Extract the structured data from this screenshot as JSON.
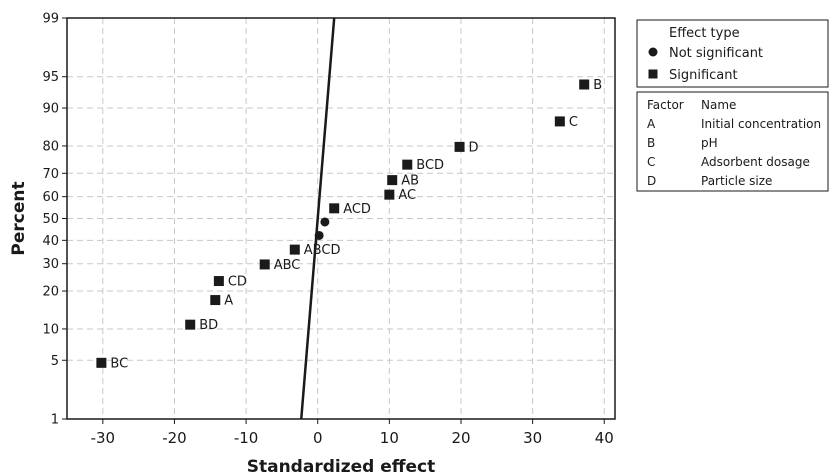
{
  "chart_data": {
    "type": "scatter",
    "chart_kind": "normal probability plot",
    "xlabel": "Standardized effect",
    "ylabel": "Percent",
    "xlim": [
      -35,
      41.5
    ],
    "xticks": [
      -30,
      -20,
      -10,
      0,
      10,
      20,
      30,
      40
    ],
    "yticks": [
      1,
      5,
      10,
      20,
      30,
      40,
      50,
      60,
      70,
      80,
      90,
      95,
      99
    ],
    "y_scale": "normal probability",
    "grid": true,
    "reference_line": {
      "x": [
        -2.3,
        2.3
      ],
      "y": [
        1,
        99
      ]
    },
    "points": [
      {
        "label": "BC",
        "x": -30.2,
        "y": 4.7,
        "type": "Significant"
      },
      {
        "label": "BD",
        "x": -17.8,
        "y": 10.9,
        "type": "Significant"
      },
      {
        "label": "A",
        "x": -14.3,
        "y": 17.2,
        "type": "Significant"
      },
      {
        "label": "CD",
        "x": -13.8,
        "y": 23.4,
        "type": "Significant"
      },
      {
        "label": "ABC",
        "x": -7.4,
        "y": 29.7,
        "type": "Significant"
      },
      {
        "label": "ABCD",
        "x": -3.2,
        "y": 35.9,
        "type": "Significant"
      },
      {
        "label": "",
        "x": 0.2,
        "y": 42.2,
        "type": "Not significant"
      },
      {
        "label": "",
        "x": 1.0,
        "y": 48.4,
        "type": "Not significant"
      },
      {
        "label": "ACD",
        "x": 2.3,
        "y": 54.7,
        "type": "Significant"
      },
      {
        "label": "AC",
        "x": 10.0,
        "y": 60.9,
        "type": "Significant"
      },
      {
        "label": "AB",
        "x": 10.4,
        "y": 67.2,
        "type": "Significant"
      },
      {
        "label": "BCD",
        "x": 12.5,
        "y": 73.4,
        "type": "Significant"
      },
      {
        "label": "D",
        "x": 19.8,
        "y": 79.7,
        "type": "Significant"
      },
      {
        "label": "C",
        "x": 33.8,
        "y": 87.0,
        "type": "Significant"
      },
      {
        "label": "B",
        "x": 37.2,
        "y": 94.0,
        "type": "Significant"
      }
    ],
    "legend": {
      "title": "Effect type",
      "entries": [
        {
          "label": "Not significant",
          "marker": "circle"
        },
        {
          "label": "Significant",
          "marker": "square"
        }
      ]
    },
    "factors": {
      "header": [
        "Factor",
        "Name"
      ],
      "rows": [
        [
          "A",
          "Initial concentration"
        ],
        [
          "B",
          "pH"
        ],
        [
          "C",
          "Adsorbent dosage"
        ],
        [
          "D",
          "Particle size"
        ]
      ]
    },
    "colors": {
      "marker": "#1a1a1a",
      "grid": "#c8c8c8",
      "line": "#1a1a1a"
    }
  }
}
